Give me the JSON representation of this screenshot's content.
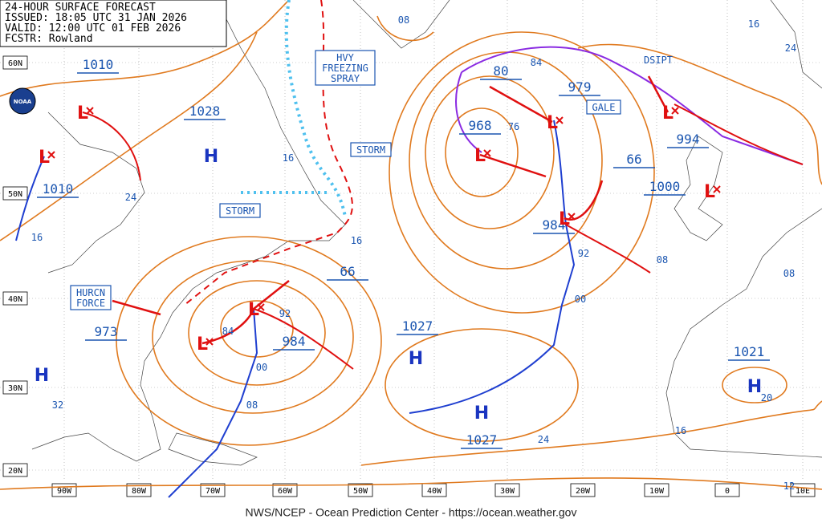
{
  "header": {
    "lines": [
      "24-HOUR SURFACE FORECAST",
      "ISSUED: 18:05 UTC 31 JAN 2026",
      "VALID: 12:00 UTC 01 FEB 2026",
      "FCSTR: Rowland"
    ]
  },
  "logo": "NOAA",
  "footer": "NWS/NCEP - Ocean Prediction Center - https://ocean.weather.gov",
  "latitude_labels": [
    "60N",
    "50N",
    "40N",
    "30N",
    "20N"
  ],
  "longitude_labels": [
    "90W",
    "80W",
    "70W",
    "60W",
    "50W",
    "40W",
    "30W",
    "20W",
    "10W",
    "0",
    "10E"
  ],
  "pressure_labels": [
    "1010",
    "1028",
    "1010",
    "973",
    "984",
    "1027",
    "1027",
    "968",
    "80",
    "979",
    "66",
    "1000",
    "984",
    "994",
    "1021",
    "66"
  ],
  "highs": [
    "H",
    "H",
    "H",
    "H",
    "H"
  ],
  "lows": [
    "L",
    "L",
    "L",
    "L",
    "L",
    "L",
    "L",
    "L",
    "L"
  ],
  "isobar_labels": [
    "08",
    "84",
    "76",
    "16",
    "24",
    "16",
    "16",
    "92",
    "08",
    "00",
    "08",
    "92",
    "84",
    "00",
    "08",
    "32",
    "20",
    "24",
    "16",
    "12",
    "16",
    "24"
  ],
  "boxes": [
    [
      "HVY",
      "FREEZING",
      "SPRAY"
    ],
    [
      "STORM"
    ],
    [
      "STORM"
    ],
    [
      "GALE"
    ],
    [
      "HURCN",
      "FORCE"
    ]
  ],
  "notes": [
    "DSIPT"
  ]
}
